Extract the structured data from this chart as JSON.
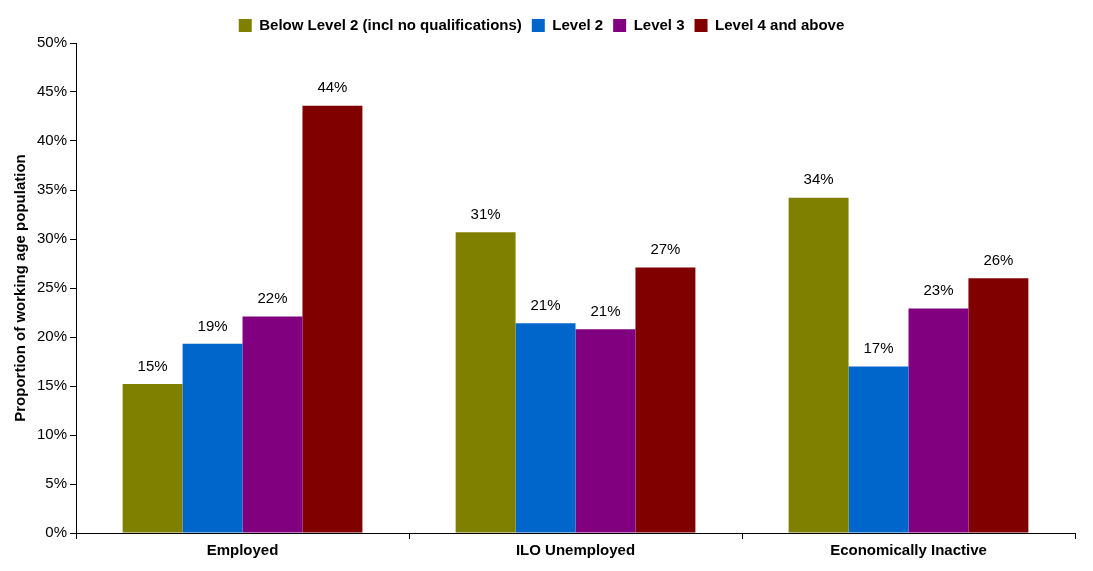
{
  "chart_data": {
    "type": "bar",
    "ylabel": "Proportion of working age population",
    "categories": [
      "Employed",
      "ILO Unemployed",
      "Economically Inactive"
    ],
    "series": [
      {
        "name": "Below Level 2 (incl no qualifications)",
        "color": "#808000",
        "values": [
          15.2,
          30.7,
          34.2
        ],
        "value_labels": [
          "15%",
          "31%",
          "34%"
        ]
      },
      {
        "name": "Level 2",
        "color": "#0066cc",
        "values": [
          19.3,
          21.4,
          17.0
        ],
        "value_labels": [
          "19%",
          "21%",
          "17%"
        ]
      },
      {
        "name": "Level 3",
        "color": "#800080",
        "values": [
          22.1,
          20.8,
          22.9
        ],
        "value_labels": [
          "22%",
          "21%",
          "23%"
        ]
      },
      {
        "name": "Level 4 and above",
        "color": "#800000",
        "values": [
          43.6,
          27.1,
          26.0
        ],
        "value_labels": [
          "44%",
          "27%",
          "26%"
        ]
      }
    ],
    "ylim": [
      0,
      50
    ],
    "yticks": [
      {
        "value": 0,
        "label": "0%"
      },
      {
        "value": 5,
        "label": "5%"
      },
      {
        "value": 10,
        "label": "10%"
      },
      {
        "value": 15,
        "label": "15%"
      },
      {
        "value": 20,
        "label": "20%"
      },
      {
        "value": 25,
        "label": "25%"
      },
      {
        "value": 30,
        "label": "30%"
      },
      {
        "value": 35,
        "label": "35%"
      },
      {
        "value": 40,
        "label": "40%"
      },
      {
        "value": 45,
        "label": "45%"
      },
      {
        "value": 50,
        "label": "50%"
      }
    ],
    "grid": false,
    "legend": "top"
  }
}
